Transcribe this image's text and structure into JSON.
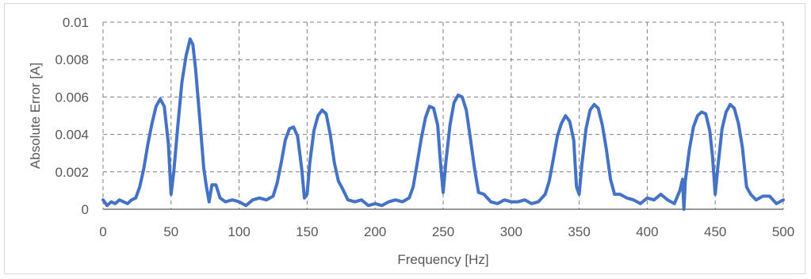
{
  "chart_data": {
    "type": "line",
    "title": "",
    "xlabel": "Frequency [Hz]",
    "ylabel": "Absolute Error [A]",
    "xlim": [
      0,
      500
    ],
    "ylim": [
      0,
      0.01
    ],
    "x_ticks": [
      0,
      50,
      100,
      150,
      200,
      250,
      300,
      350,
      400,
      450,
      500
    ],
    "x_tick_labels": [
      "0",
      "50",
      "100",
      "150",
      "200",
      "250",
      "300",
      "350",
      "400",
      "450",
      "500"
    ],
    "y_ticks": [
      0,
      0.002,
      0.004,
      0.006,
      0.008,
      0.01
    ],
    "y_tick_labels": [
      "0",
      "0.002",
      "0.004",
      "0.006",
      "0.008",
      "0.01"
    ],
    "grid": "dashed",
    "legend": "none",
    "series": [
      {
        "color": "#4472c4",
        "x": [
          0,
          3,
          6,
          9,
          12,
          15,
          18,
          21,
          24,
          27,
          30,
          33,
          36,
          39,
          42,
          45,
          48,
          50,
          52,
          55,
          58,
          61,
          64,
          66,
          68,
          70,
          72,
          74,
          76,
          78,
          80,
          83,
          86,
          90,
          95,
          100,
          105,
          110,
          115,
          120,
          125,
          128,
          131,
          134,
          137,
          140,
          143,
          146,
          148,
          150,
          152,
          155,
          158,
          161,
          164,
          167,
          170,
          173,
          176,
          180,
          185,
          190,
          195,
          200,
          205,
          210,
          215,
          220,
          225,
          228,
          231,
          234,
          237,
          240,
          243,
          246,
          248,
          250,
          252,
          255,
          258,
          261,
          264,
          267,
          270,
          273,
          276,
          280,
          285,
          290,
          295,
          300,
          305,
          310,
          315,
          320,
          325,
          328,
          331,
          334,
          337,
          340,
          343,
          346,
          348,
          350,
          352,
          355,
          358,
          361,
          364,
          367,
          370,
          373,
          376,
          380,
          385,
          390,
          395,
          400,
          405,
          410,
          415,
          420,
          424,
          426,
          427,
          428,
          431,
          434,
          437,
          440,
          443,
          446,
          448,
          450,
          452,
          455,
          458,
          461,
          464,
          467,
          470,
          473,
          476,
          480,
          485,
          490,
          495,
          500
        ],
        "y": [
          0.0005,
          0.0002,
          0.0004,
          0.0003,
          0.0005,
          0.0004,
          0.0003,
          0.0005,
          0.0006,
          0.0012,
          0.0022,
          0.0035,
          0.0046,
          0.0055,
          0.0059,
          0.0055,
          0.0035,
          0.0008,
          0.002,
          0.0045,
          0.0068,
          0.0082,
          0.0091,
          0.0088,
          0.0075,
          0.0058,
          0.004,
          0.0022,
          0.0012,
          0.0004,
          0.0013,
          0.0013,
          0.0006,
          0.0004,
          0.0005,
          0.0004,
          0.0002,
          0.0005,
          0.0006,
          0.0005,
          0.0007,
          0.0014,
          0.0025,
          0.0037,
          0.0043,
          0.0044,
          0.0039,
          0.0022,
          0.0006,
          0.0008,
          0.0025,
          0.0042,
          0.005,
          0.0053,
          0.0051,
          0.004,
          0.0025,
          0.0015,
          0.0011,
          0.0005,
          0.0004,
          0.0005,
          0.0002,
          0.0003,
          0.0002,
          0.0004,
          0.0005,
          0.0004,
          0.0006,
          0.0012,
          0.0025,
          0.0038,
          0.0049,
          0.0055,
          0.0054,
          0.0045,
          0.0025,
          0.0009,
          0.0025,
          0.0045,
          0.0057,
          0.0061,
          0.006,
          0.0053,
          0.0038,
          0.0022,
          0.0009,
          0.0008,
          0.0004,
          0.0003,
          0.0005,
          0.0004,
          0.0004,
          0.0005,
          0.0003,
          0.0004,
          0.0008,
          0.0015,
          0.0027,
          0.0039,
          0.0046,
          0.005,
          0.0047,
          0.0037,
          0.0012,
          0.0008,
          0.0024,
          0.0043,
          0.0053,
          0.0056,
          0.0054,
          0.0045,
          0.0032,
          0.0016,
          0.0008,
          0.0008,
          0.0006,
          0.0005,
          0.0003,
          0.0006,
          0.0005,
          0.0008,
          0.0005,
          0.0003,
          0.001,
          0.0016,
          0.0,
          0.0015,
          0.0032,
          0.0044,
          0.005,
          0.0052,
          0.0051,
          0.0042,
          0.0028,
          0.0008,
          0.0023,
          0.0043,
          0.0052,
          0.0056,
          0.0054,
          0.0046,
          0.0033,
          0.0012,
          0.0008,
          0.0005,
          0.0007,
          0.0007,
          0.0003,
          0.0005
        ]
      }
    ]
  }
}
